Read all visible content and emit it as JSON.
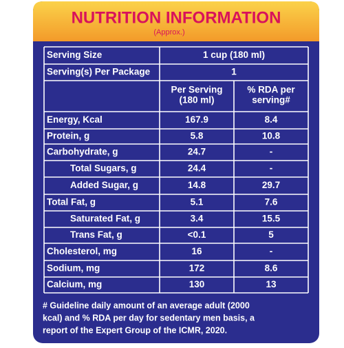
{
  "header": {
    "title": "NUTRITION INFORMATION",
    "subtitle": "(Approx.)"
  },
  "serving": [
    [
      "Serving Size",
      "1 cup (180 ml)"
    ],
    [
      "Serving(s) Per Package",
      "1"
    ]
  ],
  "table": {
    "column_headers": [
      [
        "Per Serving",
        "(180 ml)"
      ],
      [
        "% RDA per",
        "serving#"
      ]
    ],
    "rows": [
      [
        "Energy, Kcal",
        "167.9",
        "8.4"
      ],
      [
        "Protein, g",
        "5.8",
        "10.8"
      ],
      [
        "Carbohydrate, g",
        "24.7",
        "-"
      ],
      [
        "Total Sugars, g",
        "24.4",
        "-"
      ],
      [
        "Added Sugar, g",
        "14.8",
        "29.7"
      ],
      [
        "Total Fat, g",
        "5.1",
        "7.6"
      ],
      [
        "Saturated Fat, g",
        "3.4",
        "15.5"
      ],
      [
        "Trans Fat, g",
        "<0.1",
        "5"
      ],
      [
        "Cholesterol, mg",
        "16",
        "-"
      ],
      [
        "Sodium, mg",
        "172",
        "8.6"
      ],
      [
        "Calcium, mg",
        "130",
        "13"
      ]
    ]
  },
  "footnote": [
    "# Guideline daily amount of an average adult (2000",
    "kcal) and % RDA per day for sedentary men basis, a",
    "report of the Expert Group of the ICMR, 2020."
  ]
}
